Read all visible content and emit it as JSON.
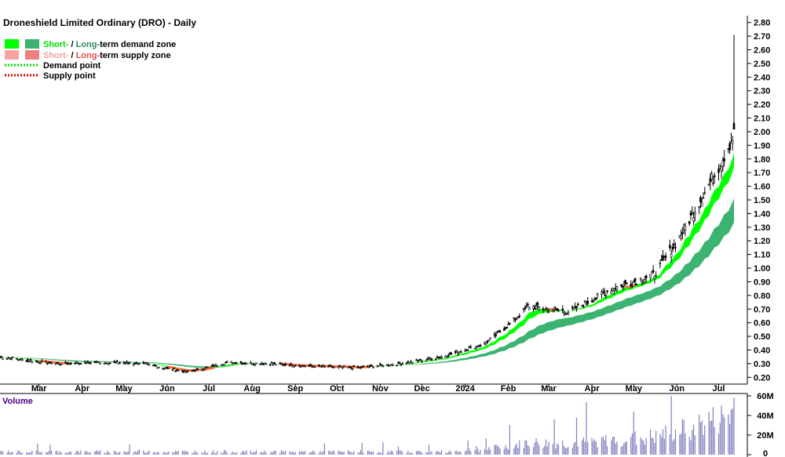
{
  "chart_data": {
    "type": "candlestick",
    "title": "Droneshield Limited Ordinary (DRO) - Daily",
    "legend": [
      {
        "label_a": "Short-",
        "sep": " / ",
        "label_b": "Long-",
        "tail": "term demand zone",
        "color_a": "#00ff00",
        "color_b": "#3cb371"
      },
      {
        "label_a": "Short-",
        "sep": " / ",
        "label_b": "Long-",
        "tail": "term supply zone",
        "color_a": "#f5a3a3",
        "color_b": "#f07f7f"
      },
      {
        "label": "Demand point",
        "color": "#00dd00"
      },
      {
        "label": "Supply point",
        "color": "#dd0000"
      }
    ],
    "colors": {
      "short_demand": "#00ff00",
      "long_demand": "#3cb371",
      "short_supply": "#f5a3a3",
      "long_supply": "#f07f7f",
      "supply_line": "#ff6a3d",
      "candles": "#000000",
      "volume": "#8080c0",
      "volume_title": "#4b0082"
    },
    "price_axis": {
      "ylim": [
        0.15,
        2.85
      ],
      "ticks": [
        "0.20",
        "0.30",
        "0.40",
        "0.50",
        "0.60",
        "0.70",
        "0.80",
        "0.90",
        "1.00",
        "1.10",
        "1.20",
        "1.30",
        "1.40",
        "1.50",
        "1.60",
        "1.70",
        "1.80",
        "1.90",
        "2.00",
        "2.10",
        "2.20",
        "2.30",
        "2.40",
        "2.50",
        "2.60",
        "2.70",
        "2.80"
      ]
    },
    "x_axis_labels": [
      "Mar",
      "Apr",
      "May",
      "Jun",
      "Jul",
      "Aug",
      "Sep",
      "Oct",
      "Nov",
      "Dec",
      "2024",
      "Feb",
      "Mar",
      "Apr",
      "May",
      "Jun",
      "Jul"
    ],
    "x_period": {
      "start": "2023-02-01",
      "end": "2024-07-12"
    },
    "volume": {
      "title": "Volume",
      "ticks": [
        "0",
        "20M",
        "40M",
        "60M"
      ],
      "ylim": [
        0,
        60000000
      ]
    },
    "price_series": [
      {
        "date": "2023-02",
        "close": 0.33
      },
      {
        "date": "2023-03",
        "close": 0.3
      },
      {
        "date": "2023-04",
        "close": 0.31
      },
      {
        "date": "2023-05",
        "close": 0.3
      },
      {
        "date": "2023-06",
        "close": 0.24
      },
      {
        "date": "2023-07",
        "close": 0.31
      },
      {
        "date": "2023-08",
        "close": 0.3
      },
      {
        "date": "2023-09",
        "close": 0.28
      },
      {
        "date": "2023-10",
        "close": 0.27
      },
      {
        "date": "2023-11",
        "close": 0.3
      },
      {
        "date": "2023-12",
        "close": 0.35
      },
      {
        "date": "2024-01",
        "close": 0.45
      },
      {
        "date": "2024-02",
        "close": 0.72
      },
      {
        "date": "2024-03",
        "close": 0.68
      },
      {
        "date": "2024-04",
        "close": 0.85
      },
      {
        "date": "2024-05",
        "close": 0.95
      },
      {
        "date": "2024-06",
        "close": 1.45
      },
      {
        "date": "2024-07",
        "close": 2.05
      }
    ],
    "highlights": {
      "peak_high": 2.71,
      "last_close": 2.02
    }
  }
}
